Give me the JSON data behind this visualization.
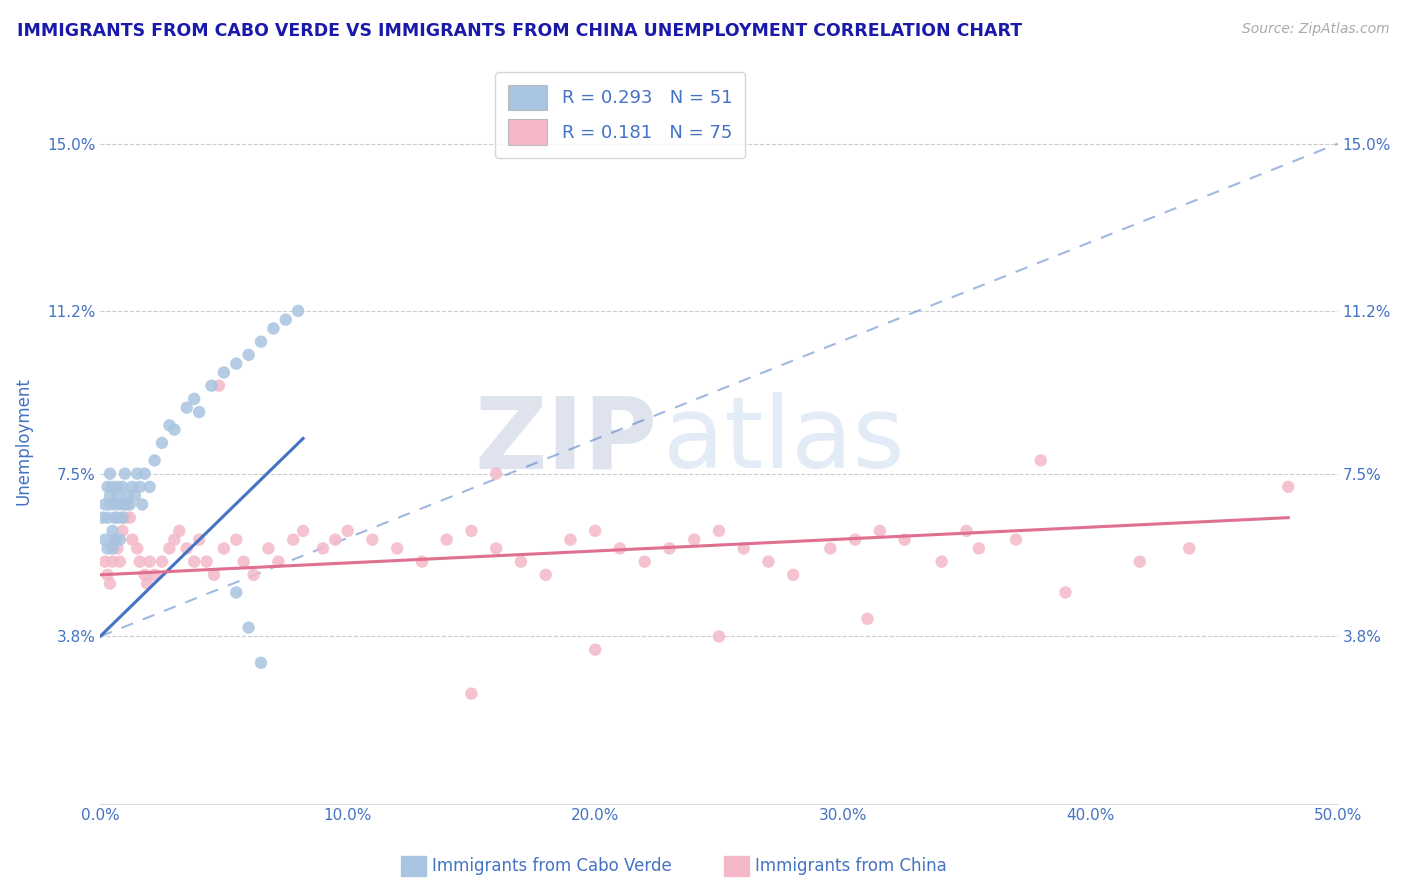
{
  "title": "IMMIGRANTS FROM CABO VERDE VS IMMIGRANTS FROM CHINA UNEMPLOYMENT CORRELATION CHART",
  "source": "Source: ZipAtlas.com",
  "ylabel": "Unemployment",
  "xlim": [
    0.0,
    0.5
  ],
  "ylim": [
    0.0,
    0.165
  ],
  "yticks": [
    0.038,
    0.075,
    0.112,
    0.15
  ],
  "ytick_labels": [
    "3.8%",
    "7.5%",
    "11.2%",
    "15.0%"
  ],
  "xticks": [
    0.0,
    0.1,
    0.2,
    0.3,
    0.4,
    0.5
  ],
  "xtick_labels": [
    "0.0%",
    "10.0%",
    "20.0%",
    "30.0%",
    "40.0%",
    "50.0%"
  ],
  "cabo_verde_color": "#a8c4e0",
  "china_color": "#f4b8c8",
  "cabo_verde_label": "Immigrants from Cabo Verde",
  "china_label": "Immigrants from China",
  "R_cabo": "0.293",
  "N_cabo": "51",
  "R_china": "0.181",
  "N_china": "75",
  "trend_cabo_color": "#4472c4",
  "trend_china_color": "#e07090",
  "watermark_zip": "ZIP",
  "watermark_atlas": "atlas",
  "title_color": "#1a1aaa",
  "axis_color": "#4472c4",
  "tick_color": "#4472c4",
  "cabo_verde_x": [
    0.001,
    0.002,
    0.002,
    0.003,
    0.003,
    0.003,
    0.004,
    0.004,
    0.004,
    0.005,
    0.005,
    0.005,
    0.006,
    0.006,
    0.006,
    0.007,
    0.007,
    0.007,
    0.008,
    0.008,
    0.009,
    0.009,
    0.01,
    0.01,
    0.011,
    0.012,
    0.013,
    0.014,
    0.015,
    0.016,
    0.017,
    0.018,
    0.02,
    0.022,
    0.025,
    0.028,
    0.03,
    0.035,
    0.038,
    0.04,
    0.045,
    0.05,
    0.055,
    0.06,
    0.065,
    0.07,
    0.075,
    0.08,
    0.055,
    0.06,
    0.065
  ],
  "cabo_verde_y": [
    0.065,
    0.06,
    0.068,
    0.072,
    0.065,
    0.058,
    0.07,
    0.075,
    0.068,
    0.062,
    0.058,
    0.072,
    0.065,
    0.068,
    0.06,
    0.07,
    0.065,
    0.072,
    0.068,
    0.06,
    0.072,
    0.065,
    0.068,
    0.075,
    0.07,
    0.068,
    0.072,
    0.07,
    0.075,
    0.072,
    0.068,
    0.075,
    0.072,
    0.078,
    0.082,
    0.086,
    0.085,
    0.09,
    0.092,
    0.089,
    0.095,
    0.098,
    0.1,
    0.102,
    0.105,
    0.108,
    0.11,
    0.112,
    0.048,
    0.04,
    0.032
  ],
  "china_x": [
    0.002,
    0.003,
    0.004,
    0.005,
    0.006,
    0.007,
    0.008,
    0.009,
    0.01,
    0.011,
    0.012,
    0.013,
    0.015,
    0.016,
    0.018,
    0.019,
    0.02,
    0.022,
    0.025,
    0.028,
    0.03,
    0.032,
    0.035,
    0.038,
    0.04,
    0.043,
    0.046,
    0.05,
    0.055,
    0.058,
    0.062,
    0.068,
    0.072,
    0.078,
    0.082,
    0.09,
    0.095,
    0.1,
    0.11,
    0.12,
    0.13,
    0.14,
    0.15,
    0.16,
    0.17,
    0.18,
    0.19,
    0.2,
    0.21,
    0.22,
    0.23,
    0.24,
    0.25,
    0.26,
    0.27,
    0.28,
    0.295,
    0.305,
    0.315,
    0.325,
    0.34,
    0.355,
    0.37,
    0.39,
    0.31,
    0.48,
    0.2,
    0.15,
    0.38,
    0.42,
    0.048,
    0.16,
    0.25,
    0.35,
    0.44
  ],
  "china_y": [
    0.055,
    0.052,
    0.05,
    0.055,
    0.06,
    0.058,
    0.055,
    0.062,
    0.065,
    0.068,
    0.065,
    0.06,
    0.058,
    0.055,
    0.052,
    0.05,
    0.055,
    0.052,
    0.055,
    0.058,
    0.06,
    0.062,
    0.058,
    0.055,
    0.06,
    0.055,
    0.052,
    0.058,
    0.06,
    0.055,
    0.052,
    0.058,
    0.055,
    0.06,
    0.062,
    0.058,
    0.06,
    0.062,
    0.06,
    0.058,
    0.055,
    0.06,
    0.062,
    0.058,
    0.055,
    0.052,
    0.06,
    0.062,
    0.058,
    0.055,
    0.058,
    0.06,
    0.062,
    0.058,
    0.055,
    0.052,
    0.058,
    0.06,
    0.062,
    0.06,
    0.055,
    0.058,
    0.06,
    0.048,
    0.042,
    0.072,
    0.035,
    0.025,
    0.078,
    0.055,
    0.095,
    0.075,
    0.038,
    0.062,
    0.058
  ],
  "trend_cabo_start_x": 0.0,
  "trend_cabo_start_y": 0.038,
  "trend_cabo_end_x": 0.082,
  "trend_cabo_end_y": 0.083,
  "trend_cabo_dash_end_x": 0.5,
  "trend_cabo_dash_end_y": 0.15,
  "trend_china_start_x": 0.0,
  "trend_china_start_y": 0.052,
  "trend_china_end_x": 0.48,
  "trend_china_end_y": 0.065
}
